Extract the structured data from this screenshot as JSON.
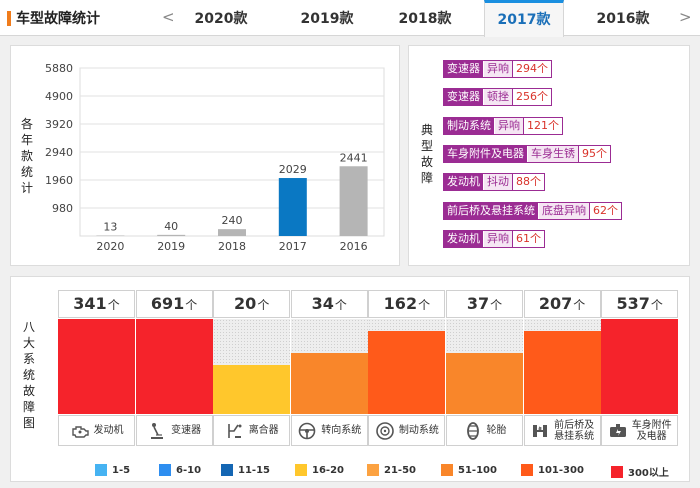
{
  "header": {
    "title": "车型故障统计",
    "prev_arrow": "<",
    "next_arrow": ">",
    "tabs": [
      {
        "label": "2020款",
        "active": false
      },
      {
        "label": "2019款",
        "active": false
      },
      {
        "label": "2018款",
        "active": false
      },
      {
        "label": "2017款",
        "active": true
      },
      {
        "label": "2016款",
        "active": false
      }
    ]
  },
  "chart_data": {
    "type": "bar",
    "title": "",
    "ylabel": "各年款统计",
    "xlabel": "",
    "categories": [
      "2020",
      "2019",
      "2018",
      "2017",
      "2016"
    ],
    "values": [
      13,
      40,
      240,
      2029,
      2441
    ],
    "highlight_index": 3,
    "colors": {
      "default": "#b5b5b5",
      "highlight": "#0a78c3"
    },
    "ylim": [
      0,
      5880
    ],
    "yticks": [
      980,
      1960,
      2940,
      3920,
      4900,
      5880
    ],
    "grid": true
  },
  "faults": {
    "label": "典型故障",
    "items": [
      {
        "system": "变速器",
        "type": "异响",
        "count": "294个"
      },
      {
        "system": "变速器",
        "type": "顿挫",
        "count": "256个"
      },
      {
        "system": "制动系统",
        "type": "异响",
        "count": "121个"
      },
      {
        "system": "车身附件及电器",
        "type": "车身生锈",
        "count": "95个"
      },
      {
        "system": "发动机",
        "type": "抖动",
        "count": "88个"
      },
      {
        "system": "前后桥及悬挂系统",
        "type": "底盘异响",
        "count": "62个"
      },
      {
        "system": "发动机",
        "type": "异响",
        "count": "61个"
      }
    ]
  },
  "systems": {
    "label": "八大系统故障图",
    "unit": "个",
    "items": [
      {
        "count": "341",
        "label": "发动机",
        "icon": "engine-icon",
        "level": 1.0,
        "color": "#f5232b"
      },
      {
        "count": "691",
        "label": "变速器",
        "icon": "gear-shift-icon",
        "level": 1.0,
        "color": "#f5232b"
      },
      {
        "count": "20",
        "label": "离合器",
        "icon": "clutch-pedal-icon",
        "level": 0.52,
        "color": "#ffc72c"
      },
      {
        "count": "34",
        "label": "转向系统",
        "icon": "steering-wheel-icon",
        "level": 0.64,
        "color": "#f9862a"
      },
      {
        "count": "162",
        "label": "制动系统",
        "icon": "brake-disc-icon",
        "level": 0.87,
        "color": "#ff5a1a"
      },
      {
        "count": "37",
        "label": "轮胎",
        "icon": "tire-icon",
        "level": 0.64,
        "color": "#f9862a"
      },
      {
        "count": "207",
        "label": "前后桥及悬挂系统",
        "icon": "suspension-icon",
        "level": 0.87,
        "color": "#ff5a1a"
      },
      {
        "count": "537",
        "label": "车身附件及电器",
        "icon": "car-body-icon",
        "level": 1.0,
        "color": "#f5232b"
      }
    ]
  },
  "legend": [
    {
      "label": "1-5",
      "color": "#46b3f2"
    },
    {
      "label": "6-10",
      "color": "#2e8ef0"
    },
    {
      "label": "11-15",
      "color": "#1466b3"
    },
    {
      "label": "16-20",
      "color": "#ffc72c"
    },
    {
      "label": "21-50",
      "color": "#fca241"
    },
    {
      "label": "51-100",
      "color": "#f9862a"
    },
    {
      "label": "101-300",
      "color": "#ff5a1a"
    },
    {
      "label": "300以上",
      "color": "#f5232b"
    }
  ]
}
